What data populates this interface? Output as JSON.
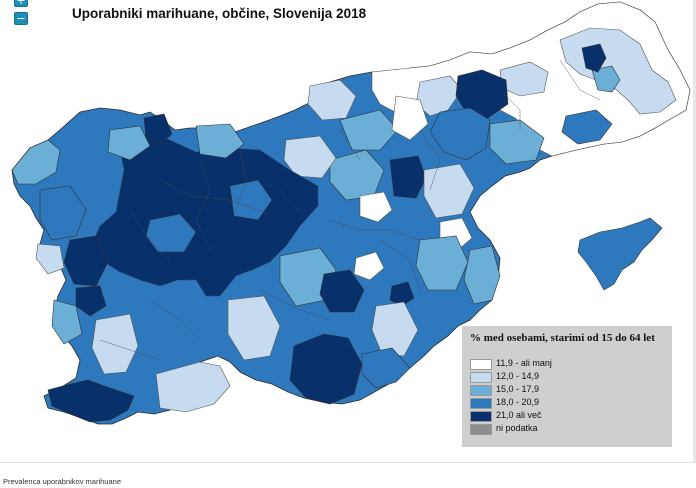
{
  "map": {
    "title": "Uporabniki marihuane, občine, Slovenija 2018",
    "zoom_in_label": "+",
    "zoom_out_label": "−"
  },
  "legend": {
    "title": "% med osebami, starimi od 15 do 64 let",
    "items": [
      {
        "label": "11,9 - ali manj",
        "color": "#ffffff"
      },
      {
        "label": "12,0 - 14,9",
        "color": "#c6dbef"
      },
      {
        "label": "15,0 - 17,9",
        "color": "#6baed6"
      },
      {
        "label": "18,0 - 20,9",
        "color": "#2e78bd"
      },
      {
        "label": "21,0 ali več",
        "color": "#08306b"
      },
      {
        "label": "ni podatka",
        "color": "#8c8c8c"
      }
    ]
  },
  "footer": {
    "caption": "Prevalenca uporabnikov marihuane"
  }
}
